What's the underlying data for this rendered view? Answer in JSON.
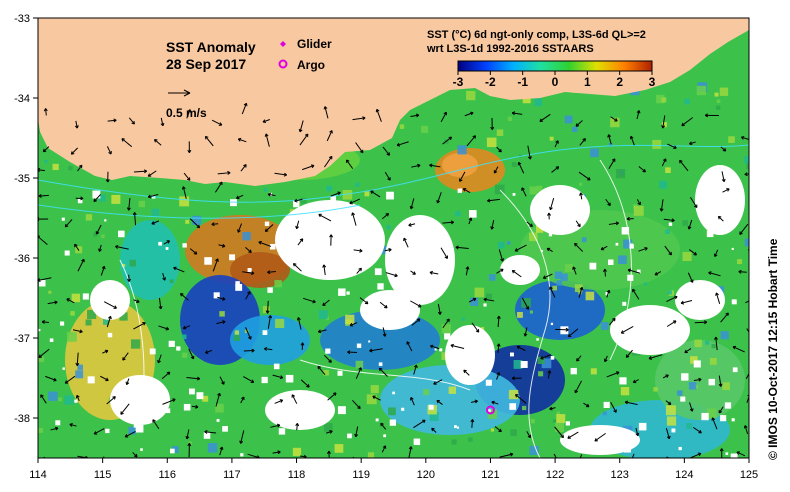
{
  "title": {
    "line1": "SST Anomaly",
    "line2": "28 Sep 2017"
  },
  "vector_scale": {
    "label": "0.5 m/s",
    "speed_ms": 0.5
  },
  "legend": {
    "glider": {
      "label": "Glider",
      "color": "#e000e0"
    },
    "argo": {
      "label": "Argo",
      "color": "#e000e0"
    }
  },
  "colorbar": {
    "title_line1": "SST (°C) 6d ngt-only comp, L3S-6d QL>=2",
    "title_line2": "wrt L3S-1d 1992-2016 SSTAARS",
    "min": -3,
    "max": 3,
    "ticks": [
      "-3",
      "-2",
      "-1",
      "0",
      "1",
      "2",
      "3"
    ],
    "colors": [
      "#000080",
      "#0040ff",
      "#00b0ff",
      "#20e0a0",
      "#30d030",
      "#e0e000",
      "#ff8000",
      "#b02000"
    ]
  },
  "axes": {
    "lon_ticks": [
      "114",
      "115",
      "116",
      "117",
      "118",
      "119",
      "120",
      "121",
      "122",
      "123",
      "124",
      "125"
    ],
    "lat_ticks": [
      "-33",
      "-34",
      "-35",
      "-36",
      "-37",
      "-38"
    ],
    "lon_range": [
      114,
      125
    ],
    "lat_range": [
      -38.5,
      -33
    ]
  },
  "credit": "© IMOS 10-Oct-2017 12:15 Hobart Time",
  "colors": {
    "land": "#f8c8a0",
    "no_data": "#ffffff",
    "frame": "#000000"
  },
  "argo_float": {
    "lon": 121.0,
    "lat": -37.9
  }
}
